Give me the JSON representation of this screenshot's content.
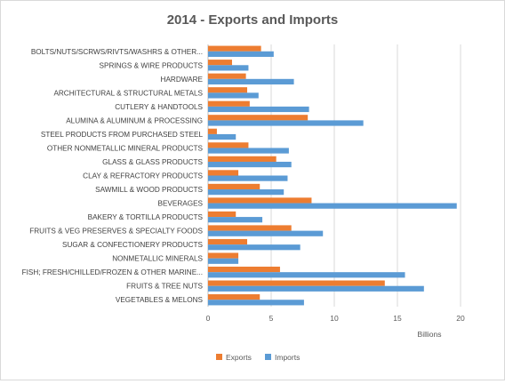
{
  "chart_data": {
    "type": "bar",
    "orientation": "horizontal",
    "title": "2014 - Exports and Imports",
    "xlabel": "Billions",
    "ylabel": "",
    "xlim": [
      0,
      20
    ],
    "xticks": [
      0,
      5,
      10,
      15,
      20
    ],
    "grid": true,
    "legend": "bottom",
    "categories": [
      "BOLTS/NUTS/SCRWS/RIVTS/WASHRS & OTHER...",
      "SPRINGS & WIRE PRODUCTS",
      "HARDWARE",
      "ARCHITECTURAL & STRUCTURAL METALS",
      "CUTLERY & HANDTOOLS",
      "ALUMINA & ALUMINUM & PROCESSING",
      "STEEL PRODUCTS FROM PURCHASED STEEL",
      "OTHER NONMETALLIC MINERAL PRODUCTS",
      "GLASS & GLASS PRODUCTS",
      "CLAY & REFRACTORY PRODUCTS",
      "SAWMILL & WOOD PRODUCTS",
      "BEVERAGES",
      "BAKERY & TORTILLA PRODUCTS",
      "FRUITS & VEG PRESERVES & SPECIALTY FOODS",
      "SUGAR & CONFECTIONERY PRODUCTS",
      "NONMETALLIC MINERALS",
      "FISH; FRESH/CHILLED/FROZEN & OTHER MARINE...",
      "FRUITS & TREE NUTS",
      "VEGETABLES & MELONS"
    ],
    "series": [
      {
        "name": "Exports",
        "color": "#ed7d31",
        "values": [
          4.2,
          1.9,
          3.0,
          3.1,
          3.3,
          7.9,
          0.7,
          3.2,
          5.4,
          2.4,
          4.1,
          8.2,
          2.2,
          6.6,
          3.1,
          2.4,
          5.7,
          14.0,
          4.1
        ]
      },
      {
        "name": "Imports",
        "color": "#5b9bd5",
        "values": [
          5.2,
          3.2,
          6.8,
          4.0,
          8.0,
          12.3,
          2.2,
          6.4,
          6.6,
          6.3,
          6.0,
          19.7,
          4.3,
          9.1,
          7.3,
          2.4,
          15.6,
          17.1,
          7.6
        ]
      }
    ]
  }
}
